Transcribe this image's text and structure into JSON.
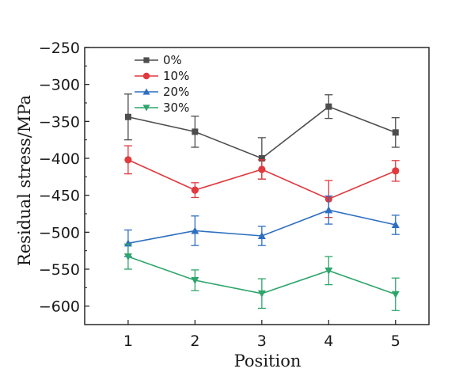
{
  "chart_data": {
    "type": "line",
    "xlabel": "Position",
    "ylabel": "Residual stress/MPa",
    "x": [
      1,
      2,
      3,
      4,
      5
    ],
    "xlim": [
      0.35,
      5.5
    ],
    "ylim": [
      -625,
      -250
    ],
    "yticks": [
      -250,
      -300,
      -350,
      -400,
      -450,
      -500,
      -550,
      -600
    ],
    "xticks": [
      1,
      2,
      3,
      4,
      5
    ],
    "grid": false,
    "legend_position": "top-left",
    "series": [
      {
        "name": "0%",
        "color": "#4d4d4d",
        "marker": "square",
        "values": [
          -344,
          -364,
          -400,
          -330,
          -365
        ],
        "errors": [
          31,
          21,
          28,
          16,
          20
        ]
      },
      {
        "name": "10%",
        "color": "#e0393e",
        "marker": "circle",
        "values": [
          -402,
          -443,
          -415,
          -455,
          -417
        ],
        "errors": [
          19,
          10,
          13,
          25,
          14
        ]
      },
      {
        "name": "20%",
        "color": "#2f6fc1",
        "marker": "triangle-up",
        "values": [
          -515,
          -498,
          -505,
          -470,
          -490
        ],
        "errors": [
          18,
          20,
          13,
          19,
          13
        ]
      },
      {
        "name": "30%",
        "color": "#2ea56b",
        "marker": "triangle-down",
        "values": [
          -533,
          -565,
          -583,
          -552,
          -584
        ],
        "errors": [
          17,
          14,
          20,
          19,
          22
        ]
      }
    ]
  }
}
